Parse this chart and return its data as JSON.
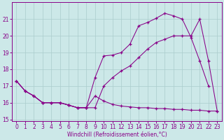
{
  "xlabel": "Windchill (Refroidissement éolien,°C)",
  "bg_color": "#cce8e8",
  "grid_color": "#aacccc",
  "line_color": "#880088",
  "xlim_min": -0.5,
  "xlim_max": 23.5,
  "ylim_min": 14.9,
  "ylim_max": 22.0,
  "yticks": [
    15,
    16,
    17,
    18,
    19,
    20,
    21
  ],
  "xticks": [
    0,
    1,
    2,
    3,
    4,
    5,
    6,
    7,
    8,
    9,
    10,
    11,
    12,
    13,
    14,
    15,
    16,
    17,
    18,
    19,
    20,
    21,
    22,
    23
  ],
  "curve_upper_x": [
    0,
    1,
    2,
    3,
    4,
    5,
    6,
    7,
    8,
    9,
    10,
    11,
    12,
    13,
    14,
    15,
    16,
    17,
    18,
    19,
    20,
    21,
    22
  ],
  "curve_upper_y": [
    17.3,
    16.7,
    16.4,
    16.0,
    16.0,
    16.0,
    15.85,
    15.7,
    15.7,
    17.5,
    18.8,
    18.85,
    19.0,
    19.5,
    20.6,
    20.8,
    21.05,
    21.35,
    21.2,
    21.0,
    19.9,
    18.5,
    17.0
  ],
  "curve_mid_x": [
    0,
    1,
    2,
    3,
    4,
    5,
    6,
    7,
    8,
    9,
    10,
    11,
    12,
    13,
    14,
    15,
    16,
    17,
    18,
    19,
    20,
    21,
    22,
    23
  ],
  "curve_mid_y": [
    17.3,
    16.7,
    16.4,
    16.0,
    16.0,
    16.0,
    15.85,
    15.7,
    15.7,
    15.7,
    17.0,
    17.5,
    17.9,
    18.2,
    18.7,
    19.2,
    19.6,
    19.8,
    20.0,
    20.0,
    20.0,
    21.0,
    18.5,
    15.5
  ],
  "curve_low_x": [
    0,
    1,
    2,
    3,
    4,
    5,
    6,
    7,
    8,
    9,
    10,
    11,
    12,
    13,
    14,
    15,
    16,
    17,
    18,
    19,
    20,
    21,
    22,
    23
  ],
  "curve_low_y": [
    17.3,
    16.7,
    16.4,
    16.0,
    16.0,
    16.0,
    15.85,
    15.7,
    15.7,
    16.4,
    16.1,
    15.9,
    15.8,
    15.75,
    15.7,
    15.7,
    15.65,
    15.65,
    15.6,
    15.6,
    15.55,
    15.55,
    15.5,
    15.5
  ]
}
